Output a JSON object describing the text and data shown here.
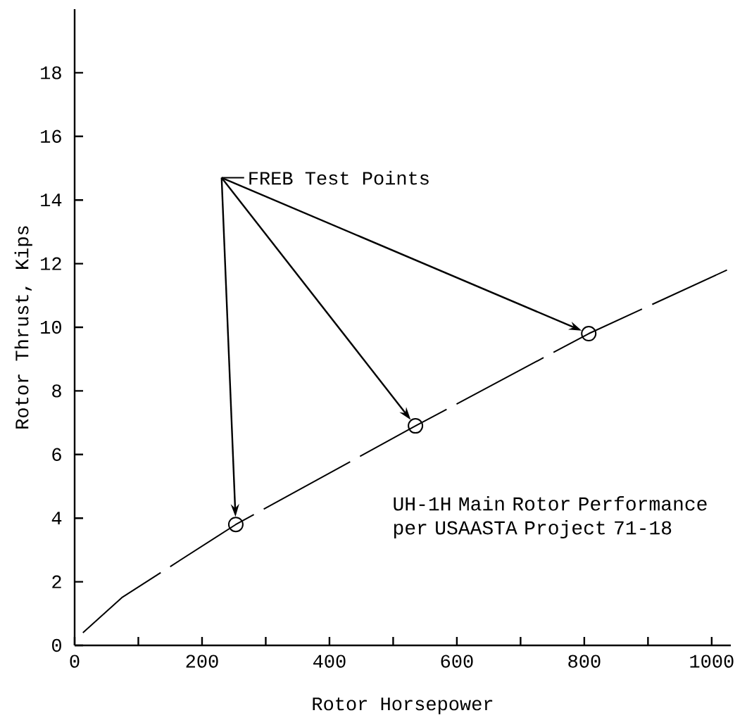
{
  "chart_data": {
    "type": "line",
    "xlabel": "Rotor Horsepower",
    "ylabel": "Rotor Thrust, Kips",
    "xlim": [
      0,
      1030
    ],
    "ylim": [
      0,
      20
    ],
    "xticks": [
      0,
      {
        "value": 100,
        "label": null
      },
      200,
      {
        "value": 300,
        "label": null
      },
      400,
      {
        "value": 500,
        "label": null
      },
      600,
      {
        "value": 700,
        "label": null
      },
      800,
      {
        "value": 900,
        "label": null
      },
      1000
    ],
    "yticks": [
      0,
      2,
      4,
      6,
      8,
      10,
      12,
      14,
      16,
      18
    ],
    "series": [
      {
        "color": "#000000",
        "line_style": "dashed",
        "marker": "none",
        "x": [
          13,
          74,
          253,
          535,
          807,
          1024
        ],
        "values": [
          0.4,
          1.5,
          3.8,
          6.9,
          9.8,
          11.8
        ]
      },
      {
        "type": "scatter",
        "color": "#000000",
        "marker": "circle",
        "x": [
          253,
          535,
          807
        ],
        "values": [
          3.8,
          6.9,
          9.8
        ]
      }
    ],
    "annotations": [
      "FREB Test Points",
      "UH-1H Main Rotor Performance per USAASTA Project 71-18"
    ]
  }
}
